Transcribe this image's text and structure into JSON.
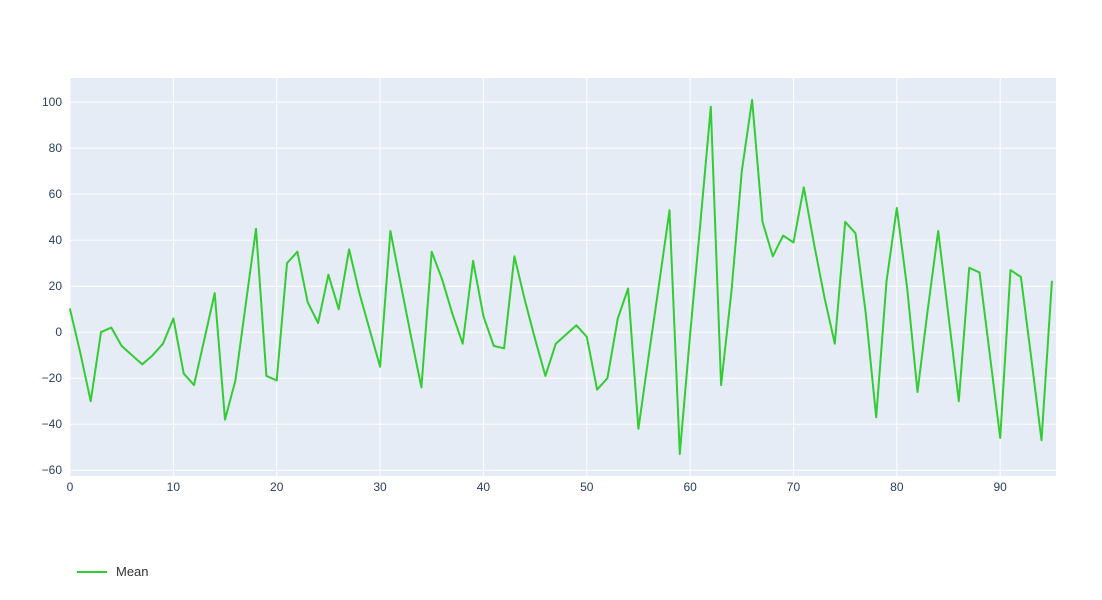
{
  "figure": {
    "background_color": "#ffffff"
  },
  "plot": {
    "background_color": "#e5ecf6",
    "gridline_color": "#ffffff",
    "tick_label_color": "#2a3f5f"
  },
  "legend": {
    "swatch_color": "#32cd32",
    "position": "bottom-left"
  },
  "chart_data": {
    "type": "line",
    "title": "",
    "xlabel": "",
    "ylabel": "",
    "x_start": 0,
    "x_step": 1,
    "xlim": [
      0,
      95.4
    ],
    "ylim": [
      -62.5,
      110.5
    ],
    "grid": true,
    "legend_position": "bottom-left",
    "x_ticks": [
      0,
      10,
      20,
      30,
      40,
      50,
      60,
      70,
      80,
      90
    ],
    "x_tick_labels": [
      "0",
      "10",
      "20",
      "30",
      "40",
      "50",
      "60",
      "70",
      "80",
      "90"
    ],
    "y_ticks": [
      100,
      80,
      60,
      40,
      20,
      0,
      -20,
      -40,
      -60
    ],
    "y_tick_labels": [
      "100",
      "80",
      "60",
      "40",
      "20",
      "0",
      "−20",
      "−40",
      "−60"
    ],
    "series": [
      {
        "name": "Mean",
        "color": "#32cd32",
        "line_width": 2,
        "values": [
          10,
          -9,
          -30,
          0,
          2,
          -6,
          -10,
          -14,
          -10,
          -5,
          6,
          -18,
          -23,
          -3,
          17,
          -38,
          -21,
          12,
          45,
          -19,
          -21,
          30,
          35,
          13,
          4,
          25,
          10,
          36,
          17,
          1,
          -15,
          44,
          21,
          -2,
          -24,
          35,
          23,
          8,
          -5,
          31,
          7,
          -6,
          -7,
          33,
          14,
          -3,
          -19,
          -5,
          -1,
          3,
          -2,
          -25,
          -20,
          6,
          19,
          -42,
          -10,
          21,
          53,
          -53,
          -1,
          48,
          98,
          -23,
          18,
          70,
          101,
          48,
          33,
          42,
          39,
          63,
          38,
          15,
          -5,
          48,
          43,
          8,
          -37,
          22,
          54,
          19,
          -26,
          10,
          44,
          7,
          -30,
          28,
          26,
          -10,
          -46,
          27,
          24,
          -11,
          -47,
          22
        ]
      }
    ]
  }
}
